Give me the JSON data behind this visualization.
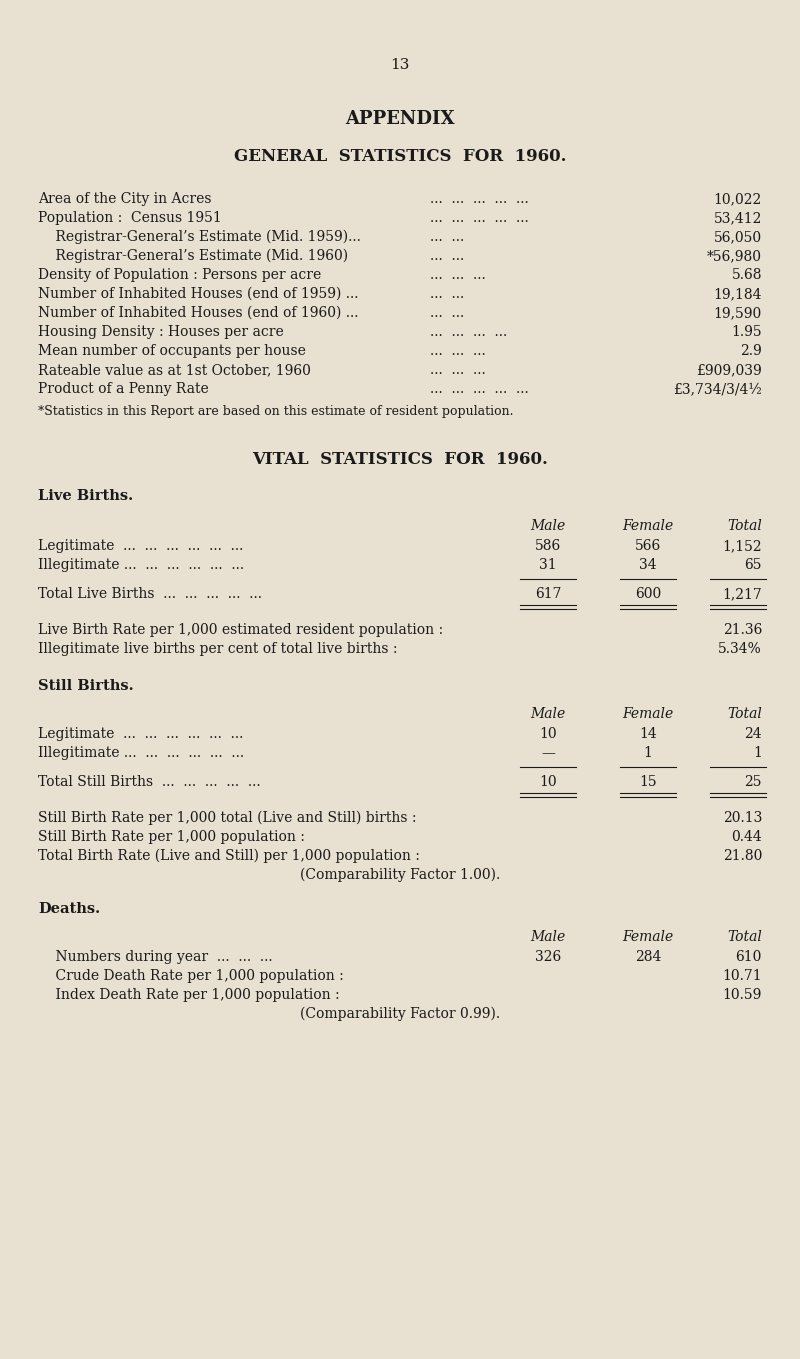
{
  "bg_color": "#e8e0d0",
  "text_color": "#1a1a1a",
  "page_number": "13",
  "title1": "APPENDIX",
  "title2": "GENERAL  STATISTICS  FOR  1960.",
  "general_stats": [
    [
      "Area of the City in Acres",
      "...  ...  ...  ...  ...",
      "10,022"
    ],
    [
      "Population :  Census 1951",
      "...  ...  ...  ...  ...",
      "53,412"
    ],
    [
      "    Registrar-General’s Estimate (Mid. 1959)...",
      "...  ...",
      "56,050"
    ],
    [
      "    Registrar-General’s Estimate (Mid. 1960)",
      "...  ...",
      "*56,980"
    ],
    [
      "Density of Population : Persons per acre",
      "...  ...  ...",
      "5.68"
    ],
    [
      "Number of Inhabited Houses (end of 1959) ...",
      "...  ...",
      "19,184"
    ],
    [
      "Number of Inhabited Houses (end of 1960) ...",
      "...  ...",
      "19,590"
    ],
    [
      "Housing Density : Houses per acre",
      "...  ...  ...  ...",
      "1.95"
    ],
    [
      "Mean number of occupants per house",
      "...  ...  ...",
      "2.9"
    ],
    [
      "Rateable value as at 1st October, 1960",
      "...  ...  ...",
      "£909,039"
    ],
    [
      "Product of a Penny Rate",
      "...  ...  ...  ...  ...",
      "£3,734/3/4½"
    ]
  ],
  "footnote": "*Statistics in this Report are based on this estimate of resident population.",
  "title3": "VITAL  STATISTICS  FOR  1960.",
  "section_live_births": "Live Births.",
  "col_headers": [
    "Male",
    "Female",
    "Total"
  ],
  "live_births_rows": [
    [
      "Legitimate  ...  ...  ...  ...  ...  ...",
      "586",
      "566",
      "1,152"
    ],
    [
      "Illegitimate ...  ...  ...  ...  ...  ...",
      "31",
      "34",
      "65"
    ]
  ],
  "live_births_total": [
    "Total Live Births  ...  ...  ...  ...  ...",
    "617",
    "600",
    "1,217"
  ],
  "live_birth_rates": [
    [
      "Live Birth Rate per 1,000 estimated resident population :",
      "21.36"
    ],
    [
      "Illegitimate live births per cent of total live births :",
      "5.34%"
    ]
  ],
  "section_still_births": "Still Births.",
  "still_births_rows": [
    [
      "Legitimate  ...  ...  ...  ...  ...  ...",
      "10",
      "14",
      "24"
    ],
    [
      "Illegitimate ...  ...  ...  ...  ...  ...",
      "—",
      "1",
      "1"
    ]
  ],
  "still_births_total": [
    "Total Still Births  ...  ...  ...  ...  ...",
    "10",
    "15",
    "25"
  ],
  "still_birth_rates": [
    [
      "Still Birth Rate per 1,000 total (Live and Still) births :",
      "20.13"
    ],
    [
      "Still Birth Rate per 1,000 population :",
      "0.44"
    ],
    [
      "Total Birth Rate (Live and Still) per 1,000 population :",
      "21.80"
    ]
  ],
  "comparability1": "(Comparability Factor 1.00).",
  "section_deaths": "Deaths.",
  "deaths_rows": [
    [
      "    Numbers during year  ...  ...  ...",
      "326",
      "284",
      "610"
    ],
    [
      "    Crude Death Rate per 1,000 population :",
      "",
      "",
      "10.71"
    ],
    [
      "    Index Death Rate per 1,000 population :",
      "",
      "",
      "10.59"
    ]
  ],
  "comparability2": "(Comparability Factor 0.99).",
  "dots_mid": "...  ...  ...  ...  ..."
}
